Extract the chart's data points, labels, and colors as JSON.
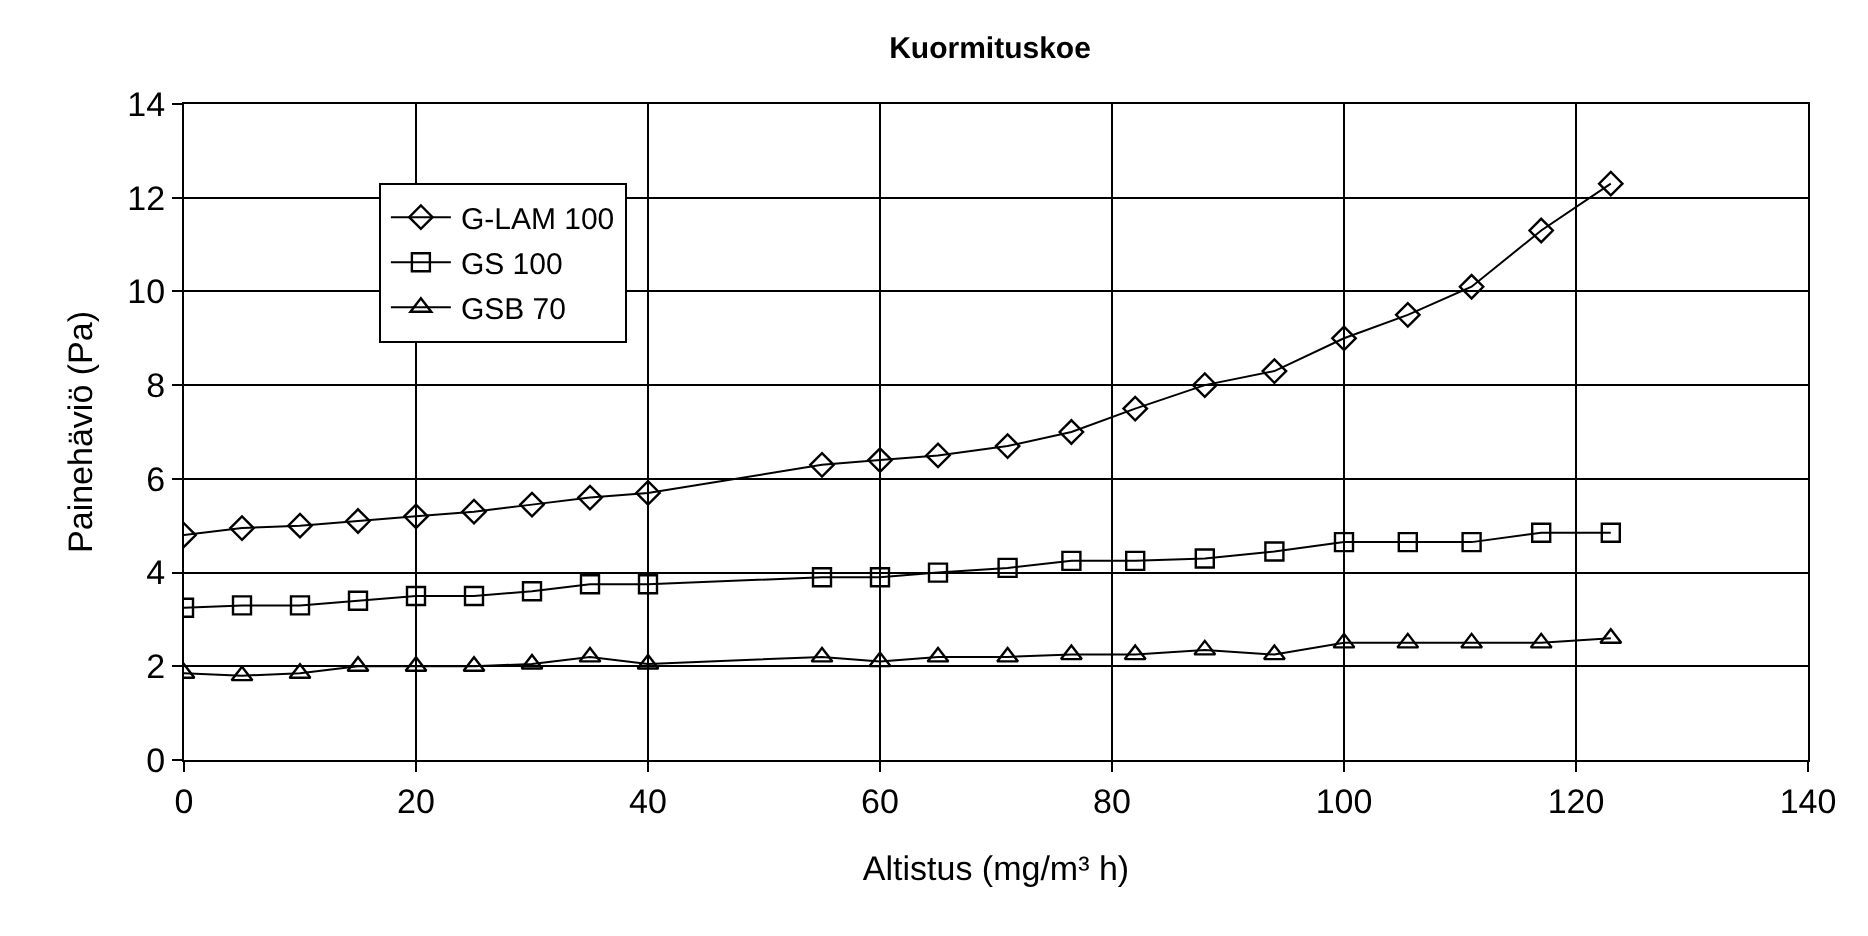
{
  "chart_data": {
    "type": "line",
    "title": "Kuormituskoe",
    "xlabel": "Altistus (mg/m³ h)",
    "ylabel": "Painehäviö (Pa)",
    "x": [
      0,
      5,
      10,
      15,
      20,
      25,
      30,
      35,
      40,
      55,
      60,
      65,
      71,
      76.5,
      82,
      88,
      94,
      100,
      105.5,
      111,
      117,
      123
    ],
    "series": [
      {
        "name": "G-LAM 100",
        "color": "#000000",
        "marker": "diamond",
        "values": [
          4.8,
          4.95,
          5.0,
          5.1,
          5.2,
          5.3,
          5.45,
          5.6,
          5.7,
          6.3,
          6.4,
          6.5,
          6.7,
          7.0,
          7.5,
          8.0,
          8.3,
          9.0,
          9.5,
          10.1,
          11.3,
          12.3
        ]
      },
      {
        "name": "GS 100",
        "color": "#000000",
        "marker": "square",
        "values": [
          3.25,
          3.3,
          3.3,
          3.4,
          3.5,
          3.5,
          3.6,
          3.75,
          3.75,
          3.9,
          3.9,
          4.0,
          4.1,
          4.25,
          4.25,
          4.3,
          4.45,
          4.65,
          4.65,
          4.65,
          4.85,
          4.85
        ]
      },
      {
        "name": "GSB 70",
        "color": "#000000",
        "marker": "triangle",
        "values": [
          1.85,
          1.8,
          1.85,
          2.0,
          2.0,
          2.0,
          2.05,
          2.2,
          2.05,
          2.2,
          2.1,
          2.2,
          2.2,
          2.25,
          2.25,
          2.35,
          2.25,
          2.5,
          2.5,
          2.5,
          2.5,
          2.6
        ]
      }
    ],
    "xlim": [
      0,
      140
    ],
    "xticks": [
      0,
      20,
      40,
      60,
      80,
      100,
      120,
      140
    ],
    "ylim": [
      0,
      14
    ],
    "yticks": [
      0,
      2,
      4,
      6,
      8,
      10,
      12,
      14
    ],
    "grid": true,
    "legend": "top left",
    "line_style": "solid"
  }
}
